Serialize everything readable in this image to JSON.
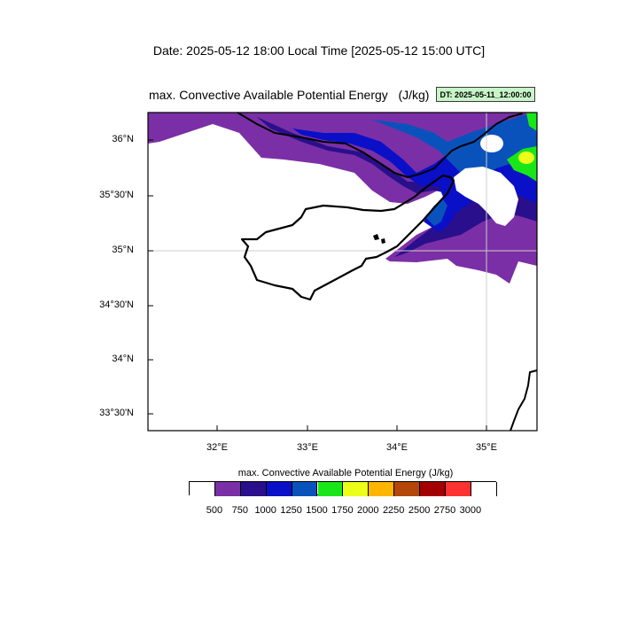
{
  "header": {
    "date_line": "Date: 2025-05-12  18:00 Local Time [2025-05-12  15:00 UTC]",
    "title": "max. Convective Available Potential Energy",
    "units": "(J/kg)",
    "dt_badge": "DT: 2025-05-11_12:00:00"
  },
  "map": {
    "lat_labels": [
      "36°N",
      "35°30'N",
      "35°N",
      "34°30'N",
      "34°N",
      "33°30'N"
    ],
    "lon_labels": [
      "32°E",
      "33°E",
      "34°E",
      "35°E"
    ]
  },
  "legend": {
    "title": "max. Convective Available Potential Energy  (J/kg)",
    "levels": [
      "500",
      "750",
      "1000",
      "1250",
      "1500",
      "1750",
      "2000",
      "2250",
      "2500",
      "2750",
      "3000"
    ],
    "colors": [
      "#ffffff",
      "#7b2fa6",
      "#2a0f8c",
      "#0a0fc8",
      "#0a52bb",
      "#19e619",
      "#ebff19",
      "#ffb400",
      "#b4460a",
      "#a50000",
      "#ff3232",
      "#ffffff"
    ]
  }
}
